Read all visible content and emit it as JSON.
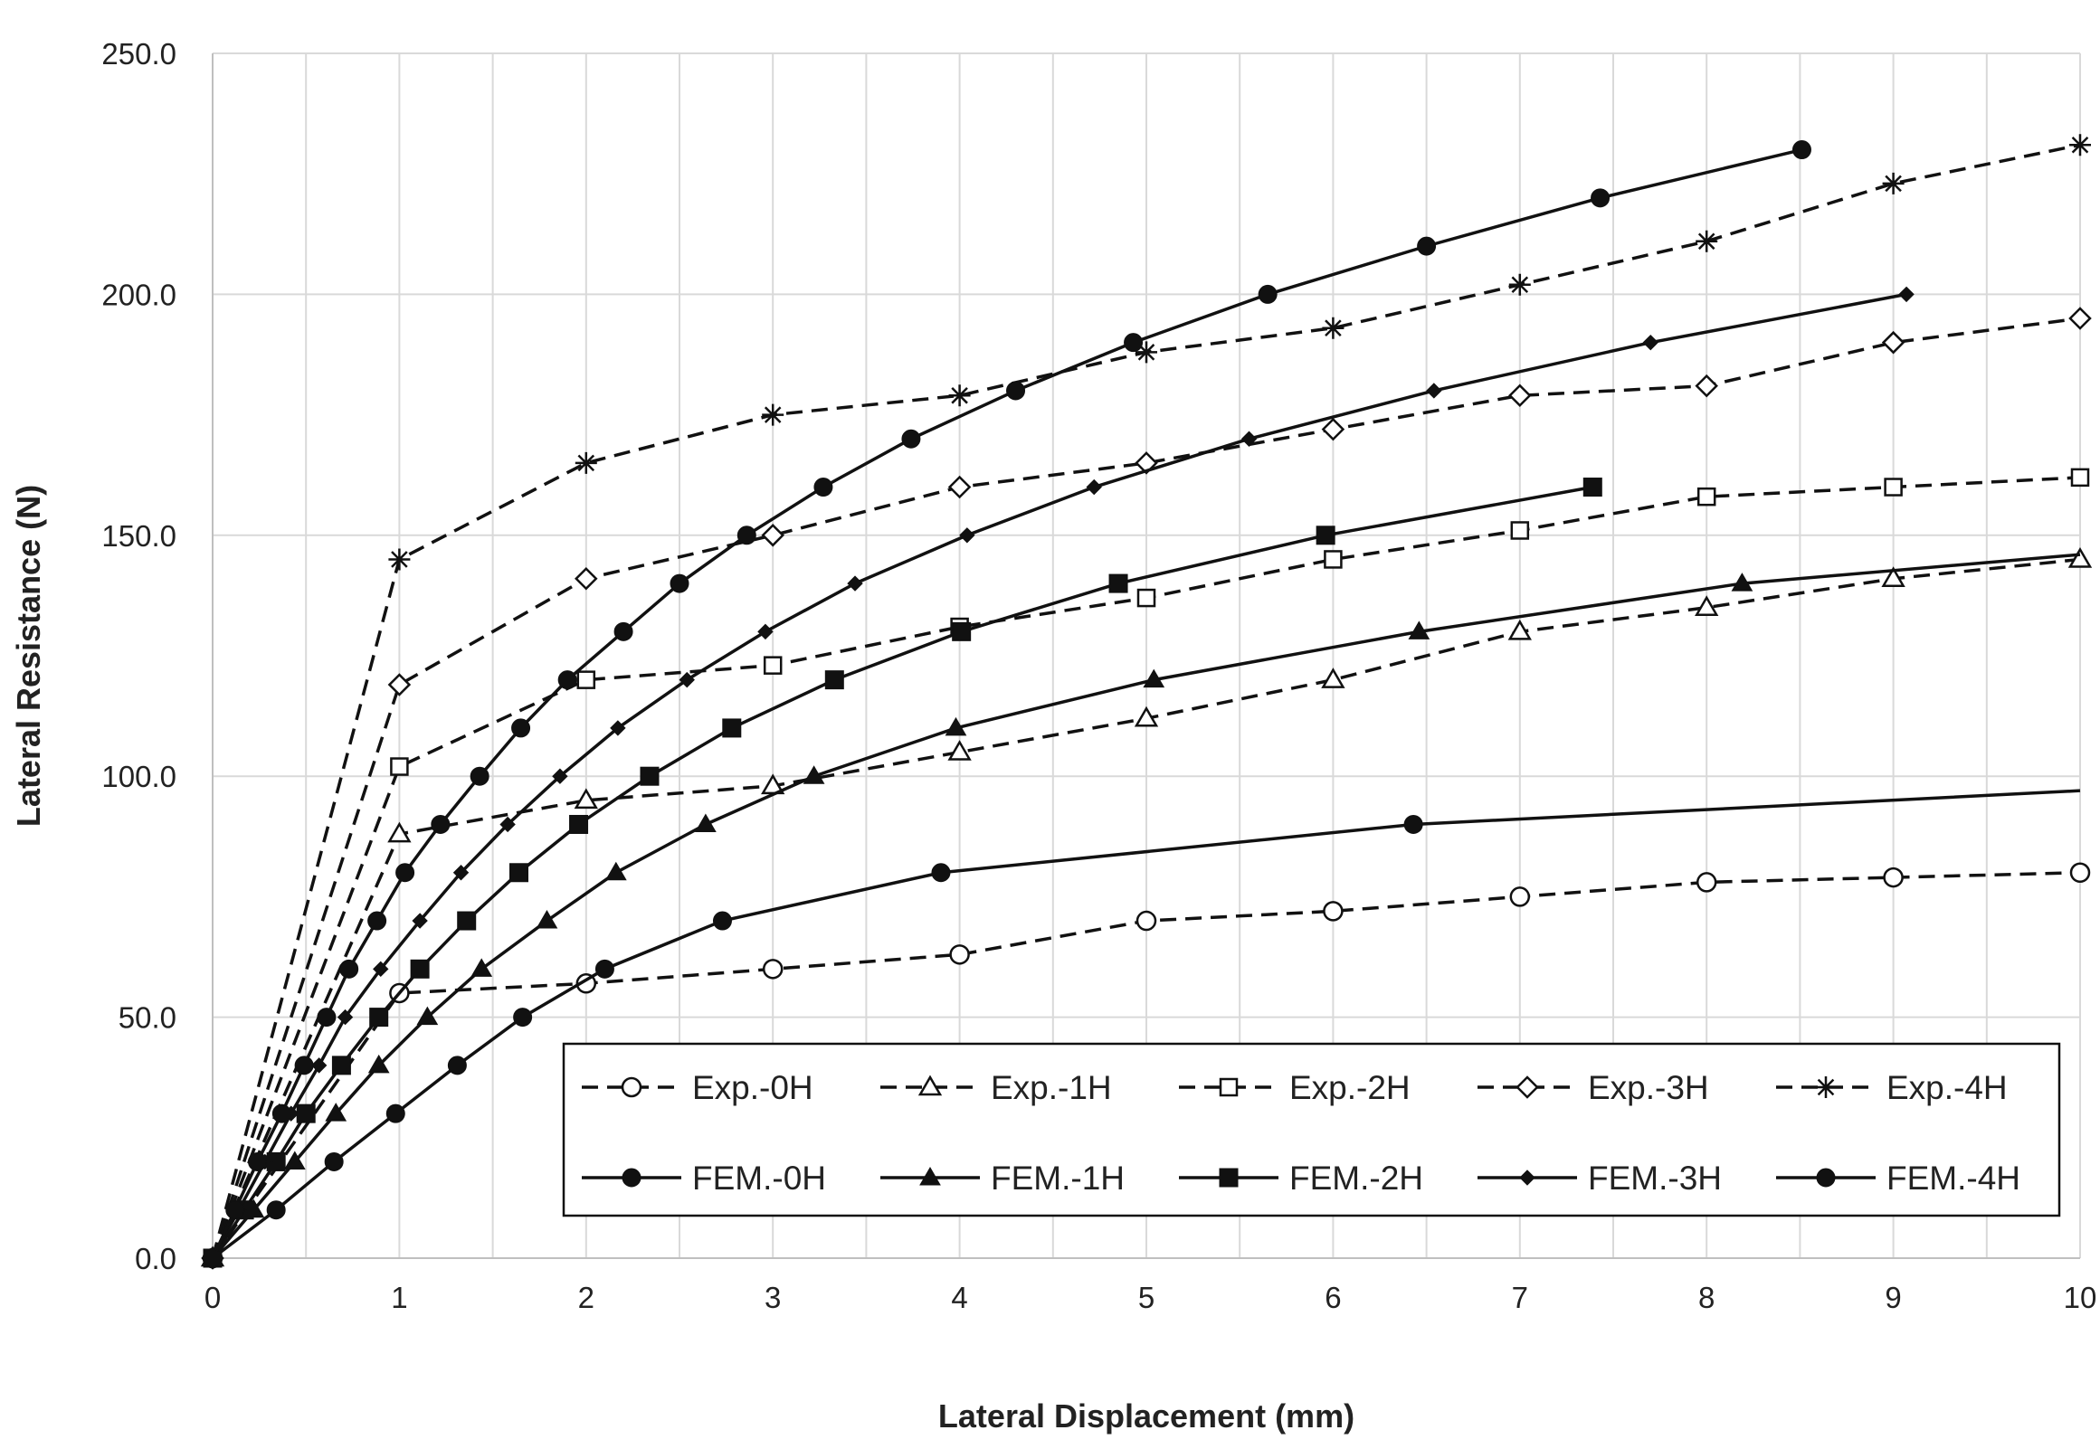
{
  "chart_data": {
    "type": "line",
    "title": "",
    "xlabel": "Lateral Displacement (mm)",
    "ylabel": "Lateral Resistance (N)",
    "xlim": [
      0,
      10
    ],
    "ylim": [
      0,
      250
    ],
    "xticks": [
      "0",
      "1",
      "2",
      "3",
      "4",
      "5",
      "6",
      "7",
      "8",
      "9",
      "10"
    ],
    "yticks": [
      "0.0",
      "50.0",
      "100.0",
      "150.0",
      "200.0",
      "250.0"
    ],
    "grid": true,
    "legend_position": "bottom-right",
    "series": [
      {
        "name": "Exp.-0H",
        "style": "dashed",
        "marker": "circle-open",
        "x": [
          0,
          1,
          2,
          3,
          4,
          5,
          6,
          7,
          8,
          9,
          10
        ],
        "y": [
          0,
          55,
          57,
          60,
          63,
          70,
          72,
          75,
          78,
          79,
          80
        ]
      },
      {
        "name": "Exp.-1H",
        "style": "dashed",
        "marker": "triangle-open",
        "x": [
          0,
          1,
          2,
          3,
          4,
          5,
          6,
          7,
          8,
          9,
          10
        ],
        "y": [
          0,
          88,
          95,
          98,
          105,
          112,
          120,
          130,
          135,
          141,
          145
        ]
      },
      {
        "name": "Exp.-2H",
        "style": "dashed",
        "marker": "square-open",
        "x": [
          0,
          1,
          2,
          3,
          4,
          5,
          6,
          7,
          8,
          9,
          10
        ],
        "y": [
          0,
          102,
          120,
          123,
          131,
          137,
          145,
          151,
          158,
          160,
          162
        ]
      },
      {
        "name": "Exp.-3H",
        "style": "dashed",
        "marker": "diamond-open",
        "x": [
          0,
          1,
          2,
          3,
          4,
          5,
          6,
          7,
          8,
          9,
          10
        ],
        "y": [
          0,
          119,
          141,
          150,
          160,
          165,
          172,
          179,
          181,
          190,
          195
        ]
      },
      {
        "name": "Exp.-4H",
        "style": "dashed",
        "marker": "asterisk",
        "x": [
          0,
          1,
          2,
          3,
          4,
          5,
          6,
          7,
          8,
          9,
          10
        ],
        "y": [
          0,
          145,
          165,
          175,
          179,
          188,
          193,
          202,
          211,
          223,
          231
        ]
      },
      {
        "name": "FEM.-0H",
        "style": "solid",
        "marker": "circle-filled",
        "x": [
          0,
          0.34,
          0.65,
          0.98,
          1.31,
          1.66,
          2.1,
          2.73,
          3.9,
          6.43,
          10
        ],
        "y": [
          0,
          10,
          20,
          30,
          40,
          50,
          60,
          70,
          80,
          90,
          97
        ]
      },
      {
        "name": "FEM.-1H",
        "style": "solid",
        "marker": "triangle-filled",
        "x": [
          0,
          0.22,
          0.44,
          0.66,
          0.89,
          1.15,
          1.44,
          1.79,
          2.16,
          2.64,
          3.22,
          3.98,
          5.04,
          6.46,
          8.19,
          10
        ],
        "y": [
          0,
          10,
          20,
          30,
          40,
          50,
          60,
          70,
          80,
          90,
          100,
          110,
          120,
          130,
          140,
          146
        ]
      },
      {
        "name": "FEM.-2H",
        "style": "solid",
        "marker": "square-filled",
        "x": [
          0,
          0.17,
          0.34,
          0.5,
          0.69,
          0.89,
          1.11,
          1.36,
          1.64,
          1.96,
          2.34,
          2.78,
          3.33,
          4.01,
          4.85,
          5.96,
          7.39
        ],
        "y": [
          0,
          10,
          20,
          30,
          40,
          50,
          60,
          70,
          80,
          90,
          100,
          110,
          120,
          130,
          140,
          150,
          160
        ]
      },
      {
        "name": "FEM.-3H",
        "style": "solid",
        "marker": "diamond-filled",
        "x": [
          0,
          0.14,
          0.28,
          0.42,
          0.57,
          0.71,
          0.9,
          1.11,
          1.33,
          1.58,
          1.86,
          2.17,
          2.54,
          2.96,
          3.44,
          4.04,
          4.72,
          5.55,
          6.54,
          7.7,
          9.07
        ],
        "y": [
          0,
          10,
          20,
          30,
          40,
          50,
          60,
          70,
          80,
          90,
          100,
          110,
          120,
          130,
          140,
          150,
          160,
          170,
          180,
          190,
          200
        ]
      },
      {
        "name": "FEM.-4H",
        "style": "solid",
        "marker": "circle-filled",
        "x": [
          0,
          0.12,
          0.24,
          0.37,
          0.49,
          0.61,
          0.73,
          0.88,
          1.03,
          1.22,
          1.43,
          1.65,
          1.9,
          2.2,
          2.5,
          2.86,
          3.27,
          3.74,
          4.3,
          4.93,
          5.65,
          6.5,
          7.43,
          8.51
        ],
        "y": [
          0,
          10,
          20,
          30,
          40,
          50,
          60,
          70,
          80,
          90,
          100,
          110,
          120,
          130,
          140,
          150,
          160,
          170,
          180,
          190,
          200,
          210,
          220,
          230
        ]
      }
    ]
  }
}
